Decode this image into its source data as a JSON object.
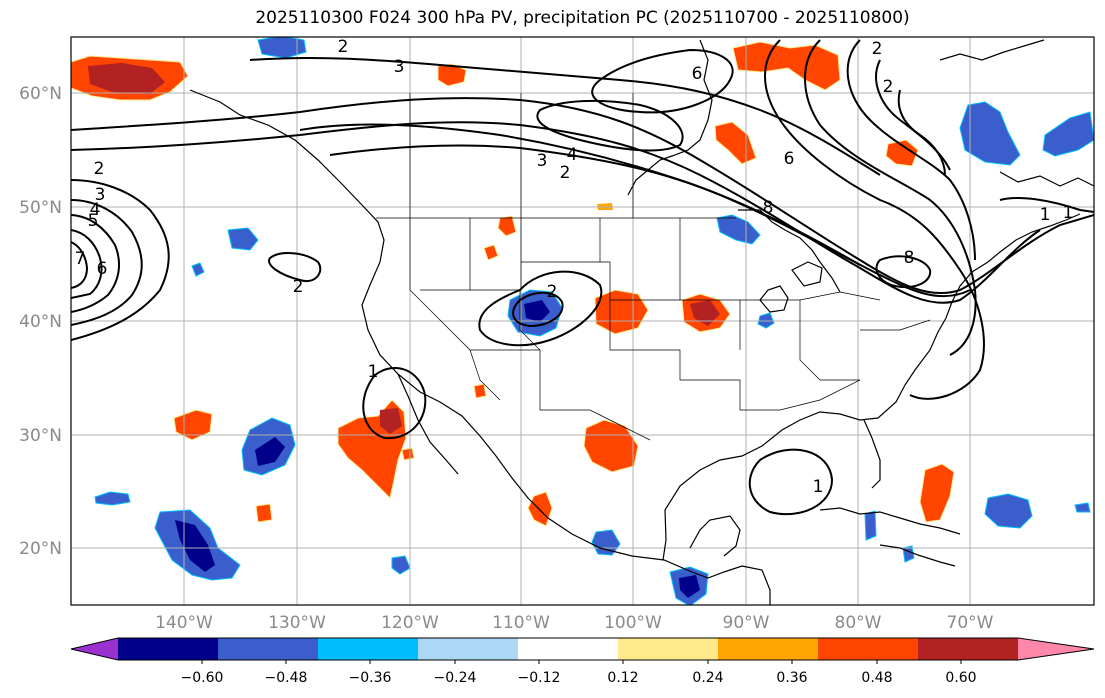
{
  "title": "2025110300 F024 300 hPa PV, precipitation PC (2025110700 - 2025110800)",
  "lat_ticks": [
    "60°N",
    "50°N",
    "40°N",
    "30°N",
    "20°N"
  ],
  "lon_ticks": [
    "140°W",
    "130°W",
    "120°W",
    "110°W",
    "100°W",
    "90°W",
    "80°W",
    "70°W"
  ],
  "colorbar": {
    "ticks": [
      "−0.60",
      "−0.48",
      "−0.36",
      "−0.24",
      "−0.12",
      "0.12",
      "0.24",
      "0.36",
      "0.48",
      "0.60"
    ],
    "colors": [
      "#9b30d0",
      "#00008b",
      "#3a5fcd",
      "#00bfff",
      "#add8f5",
      "#ffffff",
      "#ffe98a",
      "#ffa500",
      "#ff4500",
      "#b22222",
      "#ff88aa"
    ]
  },
  "contour_labels": [
    {
      "text": "2"
    },
    {
      "text": "3"
    },
    {
      "text": "2"
    },
    {
      "text": "3"
    },
    {
      "text": "4"
    },
    {
      "text": "5"
    },
    {
      "text": "7"
    },
    {
      "text": "6"
    },
    {
      "text": "2"
    },
    {
      "text": "2"
    },
    {
      "text": "3"
    },
    {
      "text": "4"
    },
    {
      "text": "2"
    },
    {
      "text": "6"
    },
    {
      "text": "6"
    },
    {
      "text": "2"
    },
    {
      "text": "1"
    },
    {
      "text": "1"
    },
    {
      "text": "1"
    },
    {
      "text": "8"
    },
    {
      "text": "8"
    },
    {
      "text": "2"
    },
    {
      "text": "1"
    }
  ]
}
